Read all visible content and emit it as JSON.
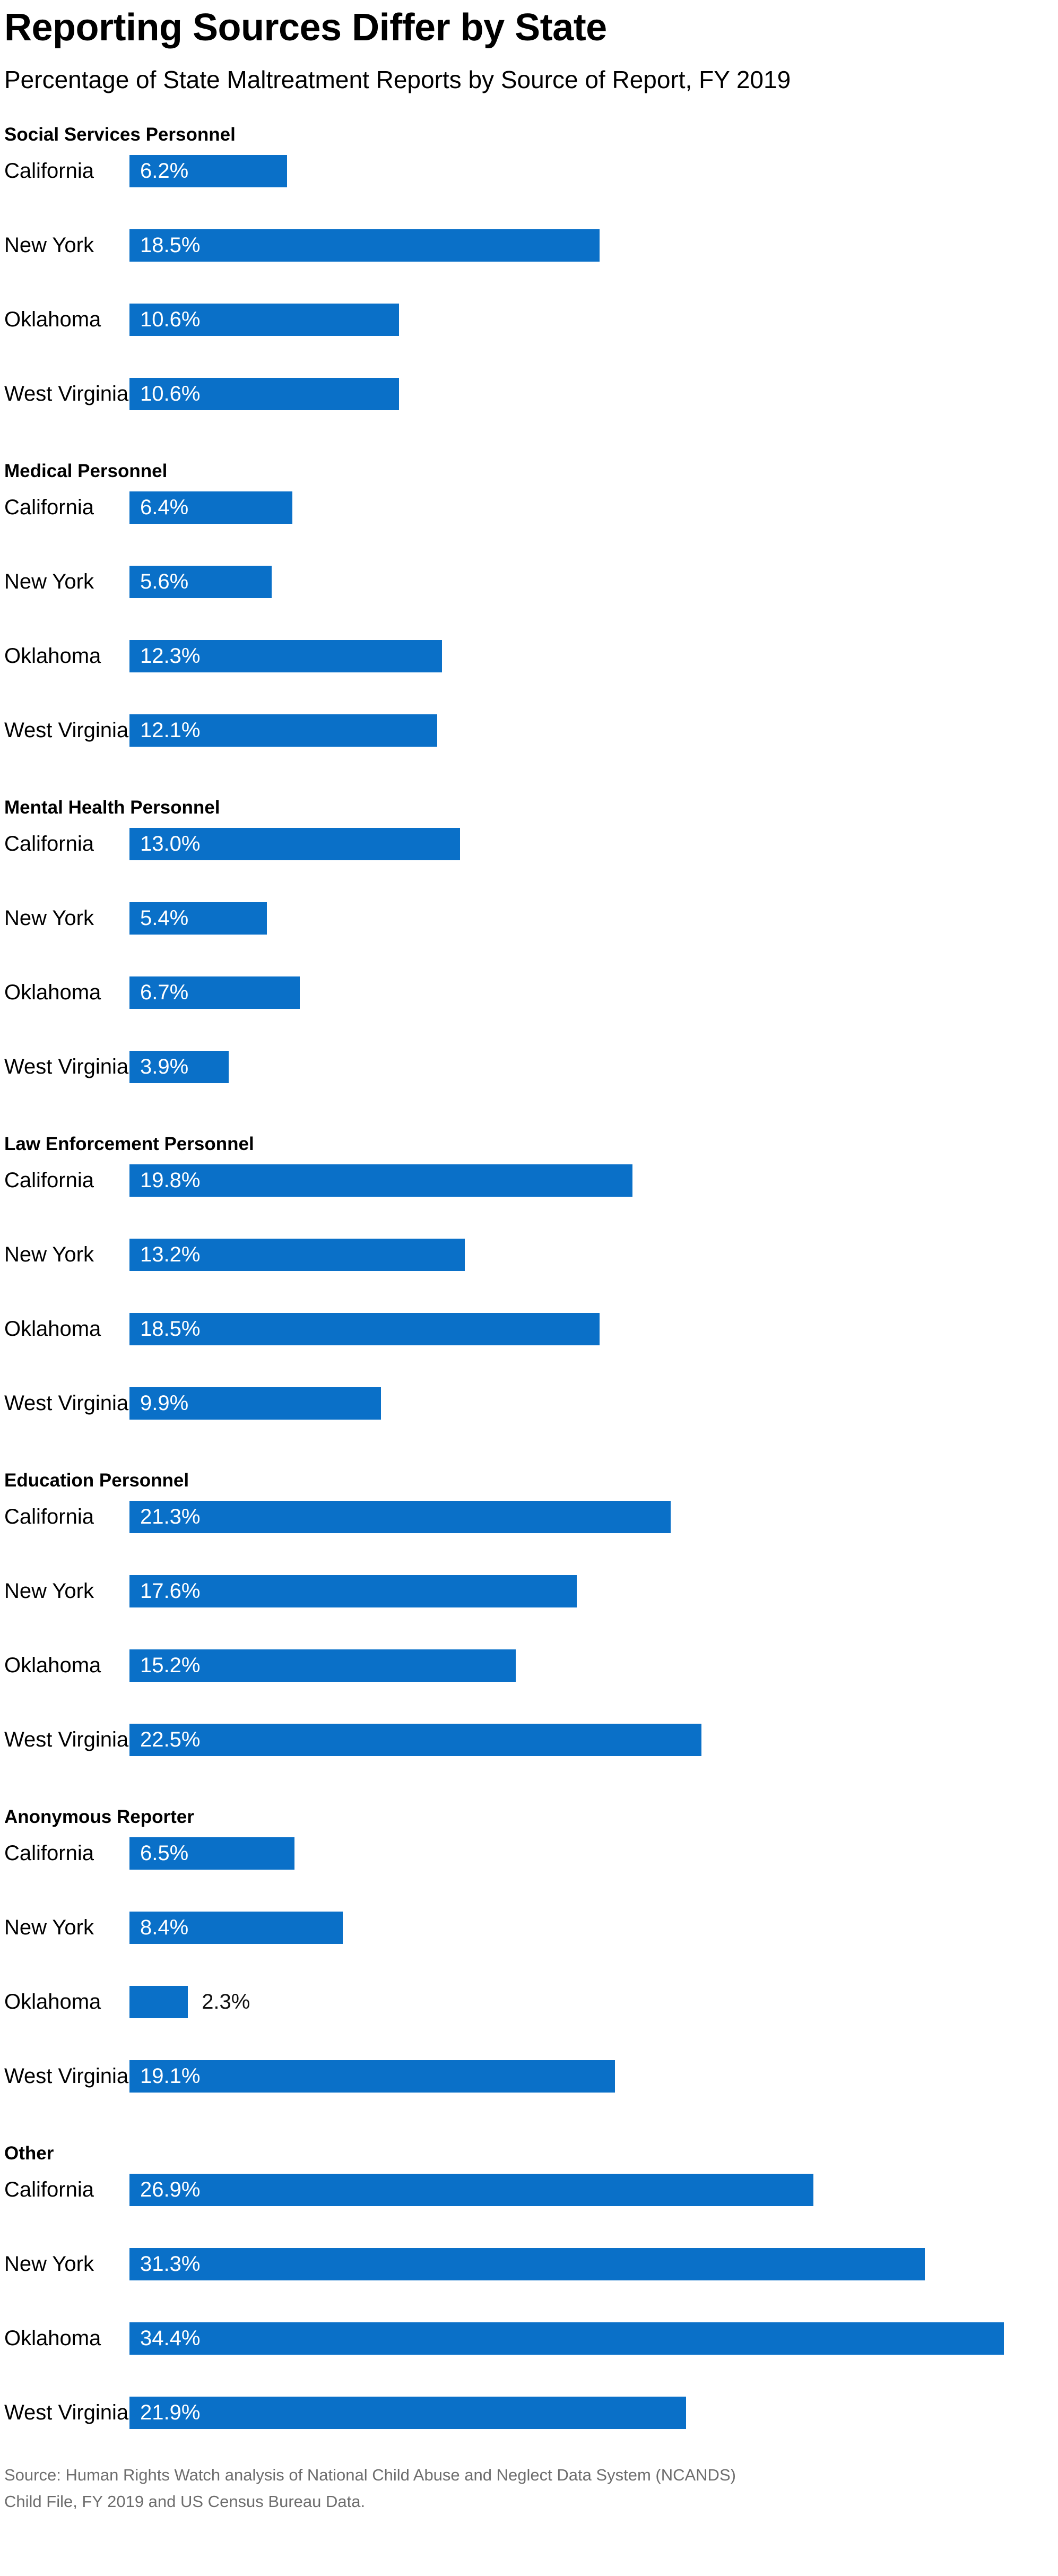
{
  "title": "Reporting Sources Differ by State",
  "subtitle": "Percentage of State Maltreatment Reports by Source of Report, FY 2019",
  "source_lines": [
    "Source: Human Rights Watch analysis of National Child Abuse and Neglect Data System (NCANDS)",
    "Child File, FY 2019 and US Census Bureau Data."
  ],
  "colors": {
    "bar": "#0a70c8",
    "value_label_inside": "#ffffff",
    "value_label_outside": "#111111",
    "text": "#000000",
    "source_text": "#6d6d6d"
  },
  "chart_data": {
    "type": "bar",
    "orientation": "horizontal",
    "unit": "%",
    "value_range": [
      0,
      36.5
    ],
    "grid": false,
    "legend": false,
    "title": "Reporting Sources Differ by State",
    "subtitle": "Percentage of State Maltreatment Reports by Source of Report, FY 2019",
    "categories": [
      "California",
      "New York",
      "Oklahoma",
      "West Virginia"
    ],
    "groups": [
      {
        "label": "Social Services Personnel",
        "values": [
          6.2,
          18.5,
          10.6,
          10.6
        ]
      },
      {
        "label": "Medical Personnel",
        "values": [
          6.4,
          5.6,
          12.3,
          12.1
        ]
      },
      {
        "label": "Mental Health Personnel",
        "values": [
          13.0,
          5.4,
          6.7,
          3.9
        ]
      },
      {
        "label": "Law Enforcement Personnel",
        "values": [
          19.8,
          13.2,
          18.5,
          9.9
        ]
      },
      {
        "label": "Education Personnel",
        "values": [
          21.3,
          17.6,
          15.2,
          22.5
        ]
      },
      {
        "label": "Anonymous Reporter",
        "values": [
          6.5,
          8.4,
          2.3,
          19.1
        ]
      },
      {
        "label": "Other",
        "values": [
          26.9,
          31.3,
          34.4,
          21.9
        ]
      }
    ]
  }
}
